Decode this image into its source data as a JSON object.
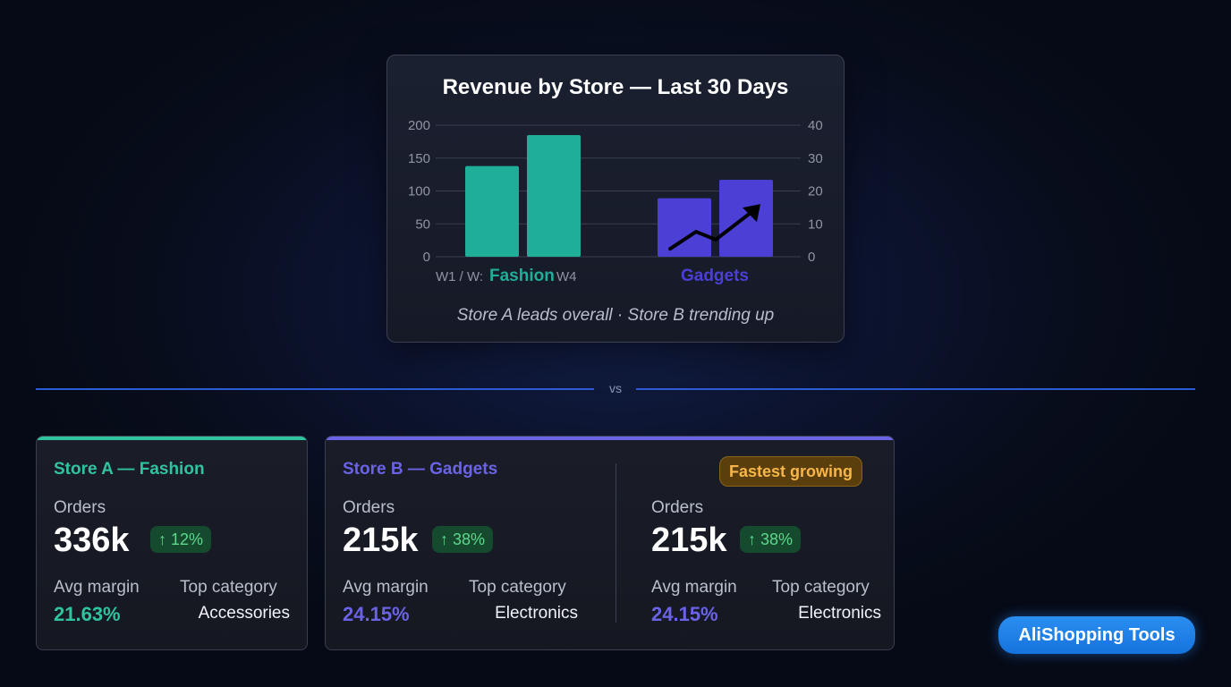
{
  "chart_data": {
    "type": "bar",
    "title": "Revenue by Store — Last 30 Days",
    "caption": "Store A leads overall · Store B trending up",
    "left_axis": {
      "ticks": [
        "200",
        "150",
        "100",
        "50",
        "0"
      ],
      "ylim": [
        0,
        200
      ]
    },
    "right_axis": {
      "ticks": [
        "40",
        "30",
        "20",
        "10",
        "0"
      ],
      "ylim": [
        0,
        40
      ]
    },
    "groups": [
      {
        "name": "Fashion",
        "color": "#1fae97",
        "axis": "left",
        "values": [
          138,
          185
        ],
        "sublabel_left": "W1 / W:",
        "sublabel_right": "W4"
      },
      {
        "name": "Gadgets",
        "color": "#4b3fd6",
        "axis": "left",
        "values": [
          89,
          117
        ]
      }
    ],
    "trend_arrow": {
      "color": "#000000",
      "points_left_axis": [
        [
          0,
          12
        ],
        [
          1,
          38
        ],
        [
          2,
          26
        ],
        [
          3,
          72
        ]
      ]
    }
  },
  "divider": {
    "label": "vs"
  },
  "stores": [
    {
      "title": "Store A — Fashion",
      "accent": "#2fc49f",
      "columns": [
        {
          "orders_label": "Orders",
          "orders_value": "336k",
          "change": "↑ 12%",
          "margin_label": "Avg margin",
          "margin_value": "21.63%",
          "category_label": "Top category",
          "category_value": "Accessories"
        }
      ]
    },
    {
      "title": "Store B — Gadgets",
      "accent": "#6a63e6",
      "badge": "Fastest growing",
      "columns": [
        {
          "orders_label": "Orders",
          "orders_value": "215k",
          "change": "↑ 38%",
          "margin_label": "Avg margin",
          "margin_value": "24.15%",
          "category_label": "Top category",
          "category_value": "Electronics"
        },
        {
          "orders_label": "Orders",
          "orders_value": "215k",
          "change": "↑ 38%",
          "margin_label": "Avg margin",
          "margin_value": "24.15%",
          "category_label": "Top category",
          "category_value": "Electronics"
        }
      ]
    }
  ],
  "brand": {
    "label": "AliShopping Tools"
  }
}
